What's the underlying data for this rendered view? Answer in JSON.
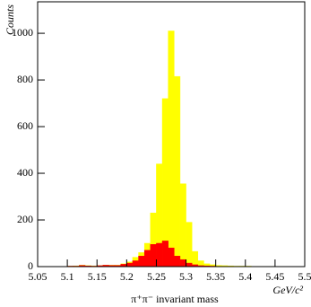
{
  "chart_data": {
    "type": "histogram",
    "y_label": "Counts",
    "x_label": "GeV/c²",
    "x_title": "π⁺π⁻ invariant mass",
    "bins": [
      5.05,
      5.06,
      5.07,
      5.08,
      5.09,
      5.1,
      5.11,
      5.12,
      5.13,
      5.14,
      5.15,
      5.16,
      5.17,
      5.18,
      5.19,
      5.2,
      5.21,
      5.22,
      5.23,
      5.24,
      5.25,
      5.26,
      5.27,
      5.28,
      5.29,
      5.3,
      5.31,
      5.32,
      5.33,
      5.34,
      5.35,
      5.36,
      5.37,
      5.38,
      5.39,
      5.4,
      5.41,
      5.42,
      5.43,
      5.44,
      5.45,
      5.46,
      5.47,
      5.48,
      5.49,
      5.5
    ],
    "series": [
      {
        "color": "#ffff00",
        "values": [
          0,
          0,
          0,
          0,
          0,
          2,
          3,
          6,
          4,
          3,
          4,
          6,
          6,
          6,
          12,
          20,
          40,
          60,
          100,
          230,
          440,
          720,
          1010,
          815,
          355,
          190,
          65,
          25,
          12,
          8,
          5,
          4,
          3,
          2,
          2,
          2,
          1,
          1,
          1,
          1,
          0,
          0,
          0,
          0,
          0
        ]
      },
      {
        "color": "#ff0000",
        "values": [
          0,
          0,
          0,
          0,
          0,
          2,
          2,
          5,
          3,
          2,
          4,
          6,
          5,
          5,
          10,
          15,
          25,
          45,
          70,
          95,
          100,
          110,
          80,
          45,
          30,
          15,
          8,
          4,
          3,
          2,
          1,
          1,
          1,
          0,
          0,
          0,
          0,
          0,
          0,
          0,
          0,
          0,
          0,
          0,
          0
        ]
      }
    ],
    "xlim": [
      5.05,
      5.5
    ],
    "xticks": [
      5.05,
      5.1,
      5.15,
      5.2,
      5.25,
      5.3,
      5.35,
      5.4,
      5.45,
      5.5
    ],
    "ylim": [
      0,
      1135
    ],
    "yticks": [
      0,
      200,
      400,
      600,
      800,
      1000
    ]
  }
}
